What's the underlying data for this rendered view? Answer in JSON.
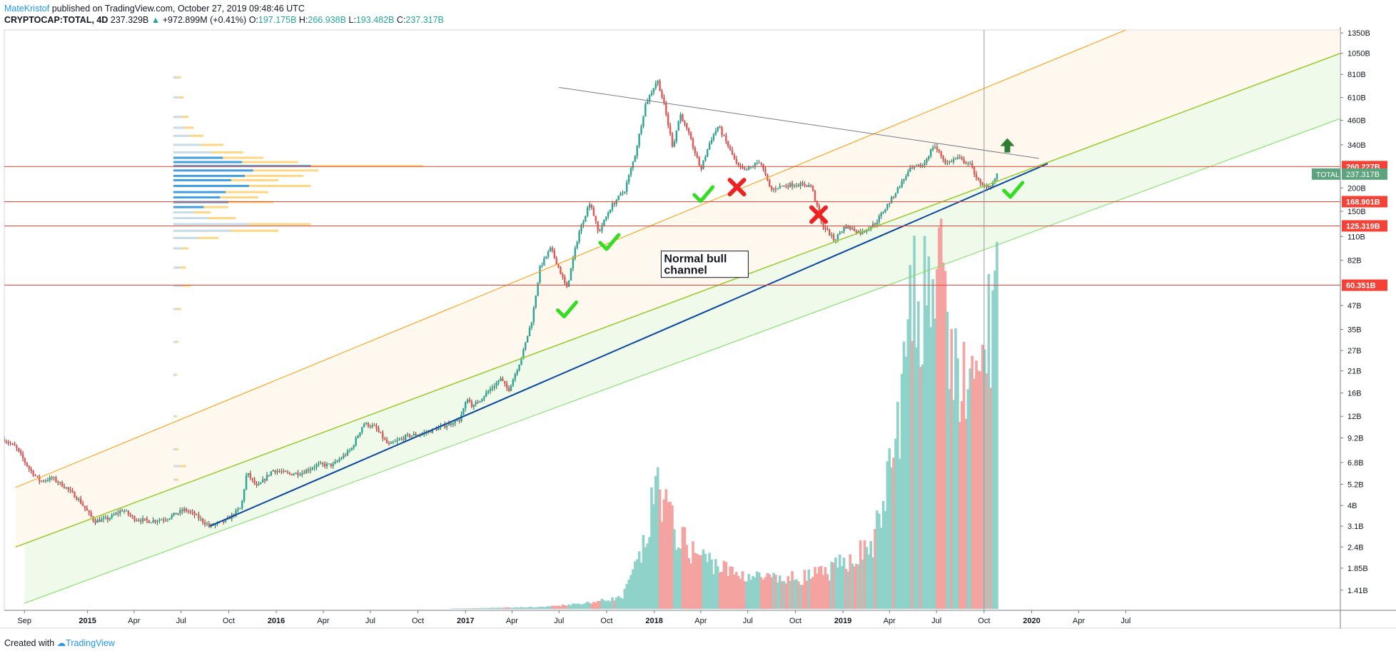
{
  "header": {
    "author": "MateKristof",
    "published": " published on TradingView.com, October 27, 2019 09:48:46 UTC",
    "symbol": "CRYPTOCAP:TOTAL, 4D",
    "price": "237.329B",
    "change": "+972.899M (+0.41%)",
    "o_label": "O:",
    "o": "197.175B",
    "h_label": "H:",
    "h": "266.938B",
    "l_label": "L:",
    "l": "193.482B",
    "c_label": "C:",
    "c": "237.317B"
  },
  "footer": {
    "created": "Created with",
    "brand": "TradingView"
  },
  "colors": {
    "up": "#26a69a",
    "down": "#ef5350",
    "upVol": "#8ed2c9",
    "downVol": "#f4a3a0",
    "support": "#f44336",
    "channelTop": "#ff9800",
    "channelMid": "#9ccc35",
    "channelBottom": "#0d47a1",
    "channelLow": "#76e05b",
    "vpLight": "#bbdefb",
    "vpDark": "#2196f3",
    "vpYellow": "#ffc95a"
  },
  "chart_data": {
    "type": "candlestick",
    "symbol": "CRYPTOCAP:TOTAL",
    "interval": "4D",
    "yScale": "log",
    "ylim": [
      1.1,
      1400
    ],
    "yUnit": "B",
    "xlim": [
      "2014-07-24",
      "2021-08-20"
    ],
    "x_ticks": [
      {
        "date": "2014-09-01",
        "label": "Sep",
        "bold": false
      },
      {
        "date": "2015-01-01",
        "label": "2015",
        "bold": true
      },
      {
        "date": "2015-04-01",
        "label": "Apr",
        "bold": false
      },
      {
        "date": "2015-07-01",
        "label": "Jul",
        "bold": false
      },
      {
        "date": "2015-10-01",
        "label": "Oct",
        "bold": false
      },
      {
        "date": "2016-01-01",
        "label": "2016",
        "bold": true
      },
      {
        "date": "2016-04-01",
        "label": "Apr",
        "bold": false
      },
      {
        "date": "2016-07-01",
        "label": "Jul",
        "bold": false
      },
      {
        "date": "2016-10-01",
        "label": "Oct",
        "bold": false
      },
      {
        "date": "2017-01-01",
        "label": "2017",
        "bold": true
      },
      {
        "date": "2017-04-01",
        "label": "Apr",
        "bold": false
      },
      {
        "date": "2017-07-01",
        "label": "Jul",
        "bold": false
      },
      {
        "date": "2017-10-01",
        "label": "Oct",
        "bold": false
      },
      {
        "date": "2018-01-01",
        "label": "2018",
        "bold": true
      },
      {
        "date": "2018-04-01",
        "label": "Apr",
        "bold": false
      },
      {
        "date": "2018-07-01",
        "label": "Jul",
        "bold": false
      },
      {
        "date": "2018-10-01",
        "label": "Oct",
        "bold": false
      },
      {
        "date": "2019-01-01",
        "label": "2019",
        "bold": true
      },
      {
        "date": "2019-04-01",
        "label": "Apr",
        "bold": false
      },
      {
        "date": "2019-07-01",
        "label": "Jul",
        "bold": false
      },
      {
        "date": "2019-10-01",
        "label": "Oct",
        "bold": false
      },
      {
        "date": "2020-01-01",
        "label": "2020",
        "bold": true
      },
      {
        "date": "2020-04-01",
        "label": "Apr",
        "bold": false
      },
      {
        "date": "2020-07-01",
        "label": "Jul",
        "bold": false
      }
    ],
    "y_ticks": [
      {
        "value": 1350,
        "label": "1350B"
      },
      {
        "value": 1050,
        "label": "1050B"
      },
      {
        "value": 810,
        "label": "810B"
      },
      {
        "value": 610,
        "label": "610B"
      },
      {
        "value": 460,
        "label": "460B"
      },
      {
        "value": 340,
        "label": "340B"
      },
      {
        "value": 200,
        "label": "200B"
      },
      {
        "value": 150,
        "label": "150B"
      },
      {
        "value": 110,
        "label": "110B"
      },
      {
        "value": 82,
        "label": "82B"
      },
      {
        "value": 47,
        "label": "47B"
      },
      {
        "value": 35,
        "label": "35B"
      },
      {
        "value": 27,
        "label": "27B"
      },
      {
        "value": 21,
        "label": "21B"
      },
      {
        "value": 16,
        "label": "16B"
      },
      {
        "value": 12,
        "label": "12B"
      },
      {
        "value": 9.2,
        "label": "9.2B"
      },
      {
        "value": 6.8,
        "label": "6.8B"
      },
      {
        "value": 5.2,
        "label": "5.2B"
      },
      {
        "value": 4,
        "label": "4B"
      },
      {
        "value": 3.1,
        "label": "3.1B"
      },
      {
        "value": 2.4,
        "label": "2.4B"
      },
      {
        "value": 1.85,
        "label": "1.85B"
      },
      {
        "value": 1.41,
        "label": "1.41B"
      }
    ],
    "price_path": [
      [
        "2014-07-24",
        9.0
      ],
      [
        "2014-08-15",
        8.2
      ],
      [
        "2014-09-10",
        6.3
      ],
      [
        "2014-10-01",
        5.4
      ],
      [
        "2014-10-25",
        5.6
      ],
      [
        "2014-11-20",
        5.0
      ],
      [
        "2014-12-15",
        4.3
      ],
      [
        "2015-01-14",
        3.3
      ],
      [
        "2015-02-10",
        3.4
      ],
      [
        "2015-03-10",
        3.8
      ],
      [
        "2015-04-01",
        3.4
      ],
      [
        "2015-05-01",
        3.3
      ],
      [
        "2015-06-01",
        3.4
      ],
      [
        "2015-07-08",
        3.8
      ],
      [
        "2015-07-25",
        3.6
      ],
      [
        "2015-08-25",
        3.1
      ],
      [
        "2015-09-25",
        3.3
      ],
      [
        "2015-10-25",
        3.9
      ],
      [
        "2015-11-05",
        6.0
      ],
      [
        "2015-11-25",
        5.0
      ],
      [
        "2015-12-25",
        6.2
      ],
      [
        "2016-01-25",
        5.9
      ],
      [
        "2016-02-20",
        6.0
      ],
      [
        "2016-03-20",
        6.6
      ],
      [
        "2016-04-20",
        6.6
      ],
      [
        "2016-05-25",
        8.0
      ],
      [
        "2016-06-18",
        11.0
      ],
      [
        "2016-07-10",
        10.5
      ],
      [
        "2016-08-05",
        8.4
      ],
      [
        "2016-09-10",
        9.4
      ],
      [
        "2016-10-10",
        9.7
      ],
      [
        "2016-11-10",
        10.4
      ],
      [
        "2016-12-20",
        11.5
      ],
      [
        "2017-01-05",
        15.0
      ],
      [
        "2017-01-15",
        13.5
      ],
      [
        "2017-02-20",
        17.0
      ],
      [
        "2017-03-10",
        19.0
      ],
      [
        "2017-03-25",
        16.5
      ],
      [
        "2017-04-20",
        25.0
      ],
      [
        "2017-05-10",
        40.0
      ],
      [
        "2017-05-25",
        75.0
      ],
      [
        "2017-06-15",
        95.0
      ],
      [
        "2017-07-16",
        58.0
      ],
      [
        "2017-08-08",
        115.0
      ],
      [
        "2017-08-30",
        170.0
      ],
      [
        "2017-09-15",
        115.0
      ],
      [
        "2017-10-10",
        160.0
      ],
      [
        "2017-11-05",
        195.0
      ],
      [
        "2017-11-25",
        300.0
      ],
      [
        "2017-12-15",
        560.0
      ],
      [
        "2018-01-07",
        760.0
      ],
      [
        "2018-01-20",
        560.0
      ],
      [
        "2018-02-06",
        330.0
      ],
      [
        "2018-02-20",
        500.0
      ],
      [
        "2018-03-10",
        380.0
      ],
      [
        "2018-04-01",
        250.0
      ],
      [
        "2018-04-20",
        360.0
      ],
      [
        "2018-05-05",
        430.0
      ],
      [
        "2018-05-25",
        330.0
      ],
      [
        "2018-06-10",
        265.0
      ],
      [
        "2018-06-25",
        245.0
      ],
      [
        "2018-07-25",
        280.0
      ],
      [
        "2018-08-14",
        195.0
      ],
      [
        "2018-09-05",
        205.0
      ],
      [
        "2018-10-01",
        210.0
      ],
      [
        "2018-11-01",
        205.0
      ],
      [
        "2018-11-20",
        130.0
      ],
      [
        "2018-12-15",
        105.0
      ],
      [
        "2019-01-05",
        125.0
      ],
      [
        "2019-02-05",
        115.0
      ],
      [
        "2019-03-05",
        130.0
      ],
      [
        "2019-04-05",
        175.0
      ],
      [
        "2019-05-10",
        250.0
      ],
      [
        "2019-06-05",
        265.0
      ],
      [
        "2019-06-26",
        340.0
      ],
      [
        "2019-07-20",
        270.0
      ],
      [
        "2019-08-10",
        290.0
      ],
      [
        "2019-09-05",
        265.0
      ],
      [
        "2019-09-25",
        205.0
      ],
      [
        "2019-10-15",
        207.0
      ],
      [
        "2019-10-27",
        237.0
      ]
    ],
    "volume_path": [
      [
        "2016-12-01",
        0.002
      ],
      [
        "2017-06-01",
        0.015
      ],
      [
        "2017-09-01",
        0.05
      ],
      [
        "2017-11-01",
        0.09
      ],
      [
        "2017-12-15",
        0.5
      ],
      [
        "2018-01-07",
        1.0
      ],
      [
        "2018-02-10",
        0.6
      ],
      [
        "2018-03-15",
        0.45
      ],
      [
        "2018-06-01",
        0.28
      ],
      [
        "2018-09-01",
        0.22
      ],
      [
        "2018-12-01",
        0.28
      ],
      [
        "2019-03-01",
        0.5
      ],
      [
        "2019-04-10",
        1.2
      ],
      [
        "2019-05-15",
        2.3
      ],
      [
        "2019-06-30",
        2.7
      ],
      [
        "2019-08-01",
        1.9
      ],
      [
        "2019-09-15",
        1.6
      ],
      [
        "2019-10-27",
        2.6
      ]
    ],
    "volume_max_note": "relative volume (no volume scale printed)",
    "levels": [
      {
        "value": 260.227,
        "label": "260.227B"
      },
      {
        "value": 168.901,
        "label": "168.901B"
      },
      {
        "value": 125.319,
        "label": "125.319B"
      },
      {
        "value": 60.351,
        "label": "60.351B"
      }
    ],
    "last_price": {
      "value": 237.317,
      "name": "TOTAL",
      "label": "237.317B"
    },
    "channel": {
      "top": [
        [
          "2014-08-15",
          5.0
        ],
        [
          "2020-07-01",
          1400
        ]
      ],
      "middle": [
        [
          "2014-08-15",
          2.4
        ],
        [
          "2021-08-20",
          1050
        ]
      ],
      "bottom": [
        [
          "2015-08-25",
          3.1
        ],
        [
          "2020-02-01",
          270
        ]
      ],
      "low": [
        [
          "2014-09-01",
          1.2
        ],
        [
          "2021-08-20",
          470
        ]
      ]
    },
    "resistance": [
      [
        "2017-07-01",
        690
      ],
      [
        "2020-01-15",
        288
      ]
    ],
    "cursor_date": "2019-10-01",
    "annotation": {
      "text_line1": "Normal bull",
      "text_line2": "channel",
      "date": "2018-01-20",
      "value": 82
    },
    "checks": [
      {
        "date": "2017-07-15",
        "value": 44
      },
      {
        "date": "2017-10-05",
        "value": 101
      },
      {
        "date": "2018-04-05",
        "value": 182
      },
      {
        "date": "2019-11-25",
        "value": 192
      }
    ],
    "crosses": [
      {
        "date": "2018-06-10",
        "value": 202
      },
      {
        "date": "2018-11-15",
        "value": 144
      }
    ],
    "up_arrow": {
      "date": "2019-11-15",
      "value": 335
    },
    "volume_profile": {
      "date_right_edge": "2016-08-10",
      "bins": [
        {
          "value": 780,
          "total": 0.03
        },
        {
          "value": 610,
          "total": 0.04
        },
        {
          "value": 480,
          "total": 0.06
        },
        {
          "value": 420,
          "total": 0.08
        },
        {
          "value": 380,
          "total": 0.12
        },
        {
          "value": 340,
          "total": 0.2
        },
        {
          "value": 310,
          "total": 0.28
        },
        {
          "value": 290,
          "total": 0.36
        },
        {
          "value": 275,
          "total": 0.5
        },
        {
          "value": 262,
          "total": 1.0
        },
        {
          "value": 248,
          "total": 0.58
        },
        {
          "value": 232,
          "total": 0.52
        },
        {
          "value": 220,
          "total": 0.42
        },
        {
          "value": 205,
          "total": 0.55
        },
        {
          "value": 190,
          "total": 0.38
        },
        {
          "value": 178,
          "total": 0.34
        },
        {
          "value": 168,
          "total": 0.4
        },
        {
          "value": 158,
          "total": 0.22
        },
        {
          "value": 148,
          "total": 0.15
        },
        {
          "value": 138,
          "total": 0.25
        },
        {
          "value": 128,
          "total": 0.55
        },
        {
          "value": 118,
          "total": 0.42
        },
        {
          "value": 108,
          "total": 0.18
        },
        {
          "value": 95,
          "total": 0.06
        },
        {
          "value": 75,
          "total": 0.05
        },
        {
          "value": 60,
          "total": 0.07
        },
        {
          "value": 45,
          "total": 0.03
        },
        {
          "value": 30,
          "total": 0.02
        },
        {
          "value": 20,
          "total": 0.015
        },
        {
          "value": 12,
          "total": 0.015
        },
        {
          "value": 8,
          "total": 0.02
        },
        {
          "value": 6.5,
          "total": 0.05
        },
        {
          "value": 5.5,
          "total": 0.02
        }
      ]
    }
  }
}
